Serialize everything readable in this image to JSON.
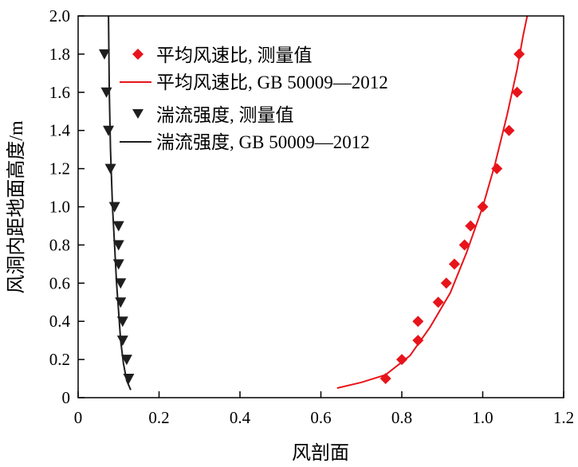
{
  "chart_data": {
    "type": "scatter",
    "xlabel": "风剖面",
    "ylabel": "风洞内距地面高度/m",
    "xlim": [
      0,
      1.2
    ],
    "ylim": [
      0,
      2.0
    ],
    "xticks": [
      "0",
      "0.2",
      "0.4",
      "0.6",
      "0.8",
      "1.0",
      "1.2"
    ],
    "yticks": [
      "0",
      "0.2",
      "0.4",
      "0.6",
      "0.8",
      "1.0",
      "1.2",
      "1.4",
      "1.6",
      "1.8",
      "2.0"
    ],
    "xtick_values": [
      0,
      0.2,
      0.4,
      0.6,
      0.8,
      1.0,
      1.2
    ],
    "ytick_values": [
      0,
      0.2,
      0.4,
      0.6,
      0.8,
      1.0,
      1.2,
      1.4,
      1.6,
      1.8,
      2.0
    ],
    "grid": false,
    "legend_position": "top-right",
    "series": [
      {
        "name": "平均风速比, 测量值",
        "kind": "scatter",
        "marker": "diamond",
        "color": "#e8141b",
        "points": [
          [
            0.76,
            0.1
          ],
          [
            0.8,
            0.2
          ],
          [
            0.84,
            0.3
          ],
          [
            0.84,
            0.4
          ],
          [
            0.89,
            0.5
          ],
          [
            0.91,
            0.6
          ],
          [
            0.93,
            0.7
          ],
          [
            0.955,
            0.8
          ],
          [
            0.97,
            0.9
          ],
          [
            1.0,
            1.0
          ],
          [
            1.035,
            1.2
          ],
          [
            1.065,
            1.4
          ],
          [
            1.085,
            1.6
          ],
          [
            1.09,
            1.8
          ]
        ]
      },
      {
        "name": "平均风速比, GB 50009—2012",
        "kind": "line",
        "color": "#e8141b",
        "points": [
          [
            0.64,
            0.05
          ],
          [
            0.7,
            0.08
          ],
          [
            0.76,
            0.12
          ],
          [
            0.82,
            0.22
          ],
          [
            0.87,
            0.37
          ],
          [
            0.92,
            0.55
          ],
          [
            0.96,
            0.76
          ],
          [
            1.0,
            1.0
          ],
          [
            1.03,
            1.22
          ],
          [
            1.06,
            1.48
          ],
          [
            1.085,
            1.72
          ],
          [
            1.1,
            1.9
          ],
          [
            1.11,
            2.0
          ]
        ]
      },
      {
        "name": "湍流强度, 测量值",
        "kind": "scatter",
        "marker": "triangle-down",
        "color": "#1e1e1e",
        "points": [
          [
            0.065,
            1.8
          ],
          [
            0.07,
            1.6
          ],
          [
            0.075,
            1.4
          ],
          [
            0.08,
            1.2
          ],
          [
            0.09,
            1.0
          ],
          [
            0.1,
            0.9
          ],
          [
            0.1,
            0.8
          ],
          [
            0.1,
            0.7
          ],
          [
            0.105,
            0.6
          ],
          [
            0.105,
            0.5
          ],
          [
            0.11,
            0.4
          ],
          [
            0.11,
            0.3
          ],
          [
            0.12,
            0.2
          ],
          [
            0.125,
            0.1
          ]
        ]
      },
      {
        "name": "湍流强度, GB 50009—2012",
        "kind": "line",
        "color": "#1e1e1e",
        "points": [
          [
            0.075,
            2.0
          ],
          [
            0.077,
            1.6
          ],
          [
            0.08,
            1.3
          ],
          [
            0.085,
            1.0
          ],
          [
            0.09,
            0.8
          ],
          [
            0.095,
            0.6
          ],
          [
            0.1,
            0.45
          ],
          [
            0.105,
            0.3
          ],
          [
            0.112,
            0.18
          ],
          [
            0.12,
            0.09
          ],
          [
            0.13,
            0.04
          ]
        ]
      }
    ]
  }
}
